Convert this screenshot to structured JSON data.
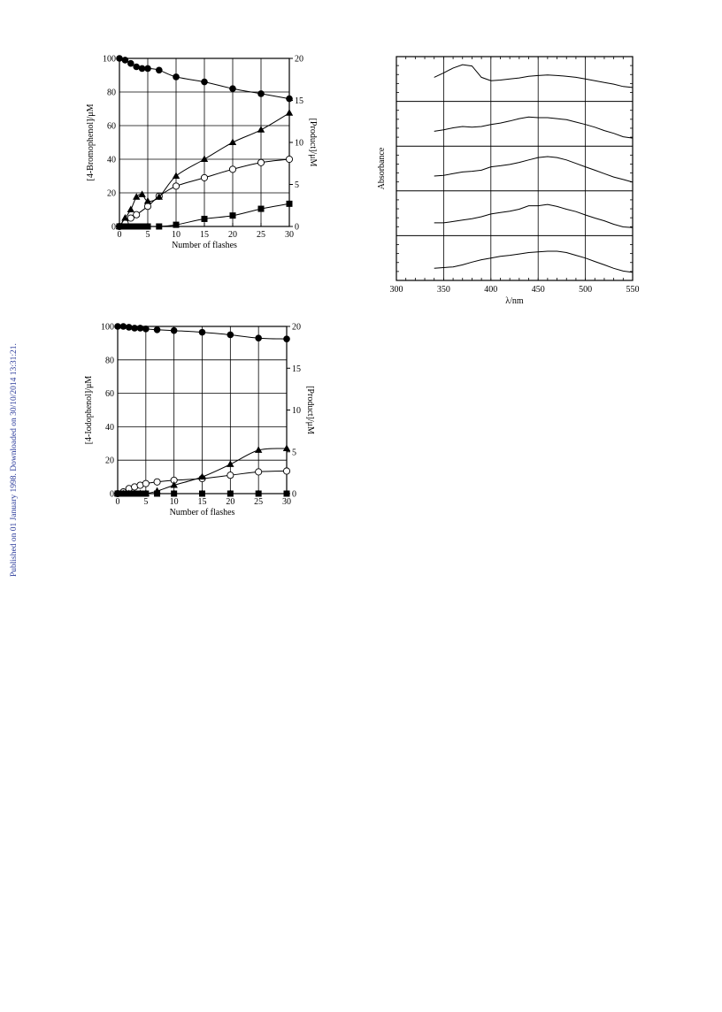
{
  "side_note": "Published on 01 January 1998. Downloaded on 30/10/2014 13:31:21.",
  "chart_data": [
    {
      "id": "bromophenol",
      "type": "scatter",
      "xlabel": "Number of flashes",
      "ylabel_left": "[4-Bromophenol]/μM",
      "ylabel_right": "[Product]/μM",
      "xlim": [
        0,
        30
      ],
      "ylim_left": [
        0,
        100
      ],
      "ylim_right": [
        0,
        20
      ],
      "xticks": [
        "0",
        "5",
        "10",
        "15",
        "20",
        "25",
        "30"
      ],
      "yticks_left": [
        "0",
        "20",
        "40",
        "60",
        "80",
        "100"
      ],
      "yticks_right": [
        "0",
        "5",
        "10",
        "15",
        "20"
      ],
      "grid": true,
      "series": [
        {
          "marker": "filled-circle",
          "axis": "left",
          "x": [
            0,
            1,
            2,
            3,
            4,
            5,
            7,
            10,
            15,
            20,
            25,
            30
          ],
          "y": [
            100,
            99,
            97,
            95,
            94,
            94,
            93,
            89,
            86,
            82,
            79,
            76
          ]
        },
        {
          "marker": "open-circle",
          "axis": "left",
          "x": [
            0,
            1,
            2,
            3,
            5,
            7,
            10,
            15,
            20,
            25,
            30
          ],
          "y": [
            0,
            2,
            5,
            7,
            12,
            18,
            24,
            29,
            34,
            38,
            40
          ]
        },
        {
          "marker": "filled-triangle",
          "axis": "right",
          "x": [
            0,
            1,
            2,
            3,
            4,
            5,
            7,
            10,
            15,
            20,
            25,
            30
          ],
          "y": [
            0,
            1,
            2,
            3.5,
            3.8,
            3,
            3.5,
            6,
            8,
            10,
            11.5,
            13.5
          ]
        },
        {
          "marker": "filled-square",
          "axis": "right",
          "x": [
            0,
            1,
            2,
            3,
            4,
            5,
            7,
            10,
            15,
            20,
            25,
            30
          ],
          "y": [
            0,
            0,
            0,
            0,
            0,
            0,
            0,
            0.2,
            0.9,
            1.3,
            2.1,
            2.7
          ]
        }
      ]
    },
    {
      "id": "spectra",
      "type": "line",
      "xlabel": "λ/nm",
      "ylabel": "Absorbance",
      "xlim": [
        300,
        550
      ],
      "xticks": [
        "300",
        "350",
        "400",
        "450",
        "500",
        "550"
      ],
      "series": [
        {
          "x": [
            340,
            350,
            360,
            370,
            380,
            390,
            400,
            410,
            420,
            430,
            440,
            450,
            460,
            470,
            480,
            490,
            500,
            510,
            520,
            530,
            540,
            550
          ],
          "y": [
            0.55,
            0.68,
            0.82,
            0.92,
            0.88,
            0.55,
            0.45,
            0.47,
            0.5,
            0.53,
            0.58,
            0.6,
            0.62,
            0.6,
            0.58,
            0.55,
            0.5,
            0.45,
            0.4,
            0.35,
            0.28,
            0.25
          ]
        },
        {
          "x": [
            340,
            350,
            360,
            370,
            380,
            390,
            400,
            410,
            420,
            430,
            440,
            450,
            460,
            470,
            480,
            490,
            500,
            510,
            520,
            530,
            540,
            550
          ],
          "y": [
            0.28,
            0.32,
            0.38,
            0.42,
            0.4,
            0.42,
            0.48,
            0.52,
            0.58,
            0.65,
            0.7,
            0.68,
            0.68,
            0.65,
            0.62,
            0.55,
            0.48,
            0.4,
            0.3,
            0.22,
            0.12,
            0.08
          ]
        },
        {
          "x": [
            340,
            350,
            360,
            370,
            380,
            390,
            400,
            410,
            420,
            430,
            440,
            450,
            460,
            470,
            480,
            490,
            500,
            510,
            520,
            530,
            540,
            550
          ],
          "y": [
            0.28,
            0.3,
            0.35,
            0.4,
            0.42,
            0.45,
            0.55,
            0.58,
            0.62,
            0.68,
            0.75,
            0.82,
            0.85,
            0.82,
            0.75,
            0.65,
            0.55,
            0.45,
            0.35,
            0.25,
            0.18,
            0.1
          ]
        },
        {
          "x": [
            340,
            350,
            360,
            370,
            380,
            390,
            400,
            410,
            420,
            430,
            440,
            450,
            460,
            470,
            480,
            490,
            500,
            510,
            520,
            530,
            540,
            550
          ],
          "y": [
            0.22,
            0.22,
            0.26,
            0.3,
            0.34,
            0.4,
            0.48,
            0.52,
            0.56,
            0.62,
            0.72,
            0.72,
            0.76,
            0.7,
            0.62,
            0.55,
            0.45,
            0.36,
            0.28,
            0.18,
            0.1,
            0.08
          ]
        },
        {
          "x": [
            340,
            350,
            360,
            370,
            380,
            390,
            400,
            410,
            420,
            430,
            440,
            450,
            460,
            470,
            480,
            490,
            500,
            510,
            520,
            530,
            540,
            550
          ],
          "y": [
            0.2,
            0.22,
            0.24,
            0.3,
            0.38,
            0.45,
            0.5,
            0.55,
            0.58,
            0.62,
            0.66,
            0.68,
            0.7,
            0.7,
            0.66,
            0.58,
            0.5,
            0.4,
            0.3,
            0.2,
            0.12,
            0.08
          ]
        }
      ]
    },
    {
      "id": "iodophenol",
      "type": "scatter",
      "xlabel": "Number of flashes",
      "ylabel_left": "[4-Iodophenol]/μM",
      "ylabel_right": "[Product]/μM",
      "xlim": [
        0,
        30
      ],
      "ylim_left": [
        0,
        100
      ],
      "ylim_right": [
        0,
        20
      ],
      "xticks": [
        "0",
        "5",
        "10",
        "15",
        "20",
        "25",
        "30"
      ],
      "yticks_left": [
        "0",
        "20",
        "40",
        "60",
        "80",
        "100"
      ],
      "yticks_right": [
        "0",
        "5",
        "10",
        "15",
        "20"
      ],
      "grid": true,
      "series": [
        {
          "marker": "filled-circle",
          "axis": "left",
          "x": [
            0,
            1,
            2,
            3,
            4,
            5,
            7,
            10,
            15,
            20,
            25,
            30
          ],
          "y": [
            100,
            100,
            99.5,
            99,
            99,
            98.5,
            98,
            97.5,
            96.5,
            95,
            93,
            92.5
          ]
        },
        {
          "marker": "open-circle",
          "axis": "left",
          "x": [
            0,
            1,
            2,
            3,
            4,
            5,
            7,
            10,
            15,
            20,
            25,
            30
          ],
          "y": [
            0,
            1,
            3,
            4,
            5,
            6,
            7,
            8,
            9,
            11,
            13,
            13.5
          ]
        },
        {
          "marker": "filled-triangle",
          "axis": "right",
          "x": [
            0,
            1,
            2,
            3,
            4,
            5,
            7,
            10,
            15,
            20,
            25,
            30
          ],
          "y": [
            0,
            0,
            0,
            0,
            0,
            0,
            0.3,
            1,
            2,
            3.5,
            5.2,
            5.4
          ]
        },
        {
          "marker": "filled-square",
          "axis": "right",
          "x": [
            0,
            1,
            2,
            3,
            4,
            5,
            7,
            10,
            15,
            20,
            25,
            30
          ],
          "y": [
            0,
            0,
            0,
            0,
            0,
            0,
            0,
            0,
            0,
            0,
            0,
            0
          ]
        }
      ]
    }
  ]
}
